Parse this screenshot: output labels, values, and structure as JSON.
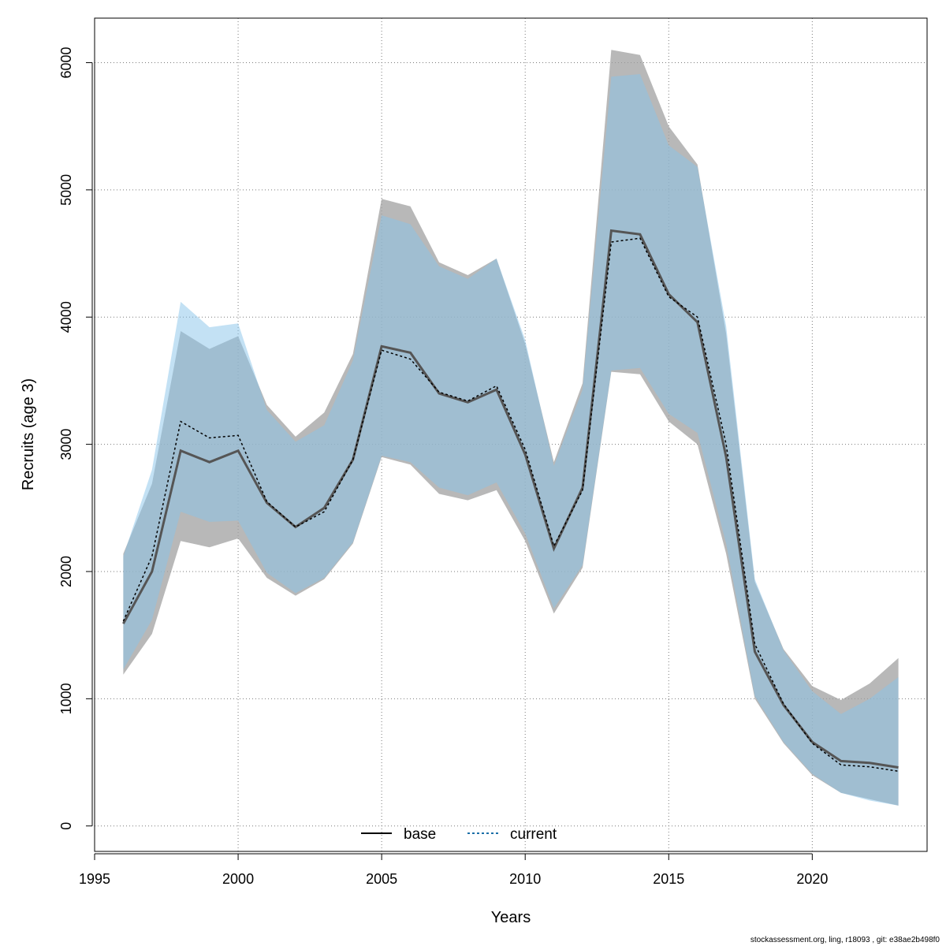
{
  "chart_data": {
    "type": "line",
    "title": "",
    "xlabel": "Years",
    "ylabel": "Recruits (age 3)",
    "xlim": [
      1995,
      2024
    ],
    "ylim": [
      -200,
      6350
    ],
    "x_ticks": [
      1995,
      2000,
      2005,
      2010,
      2015,
      2020
    ],
    "y_ticks": [
      0,
      1000,
      2000,
      3000,
      4000,
      5000,
      6000
    ],
    "grid": true,
    "legend_position": "bottom",
    "x": [
      1996,
      1997,
      1998,
      1999,
      2000,
      2001,
      2002,
      2003,
      2004,
      2005,
      2006,
      2007,
      2008,
      2009,
      2010,
      2011,
      2012,
      2013,
      2014,
      2015,
      2016,
      2017,
      2018,
      2019,
      2020,
      2021,
      2022,
      2023
    ],
    "series": [
      {
        "name": "base",
        "color": "#444444",
        "band_color": "#a0a0a0",
        "line_style": "solid",
        "values": [
          1590,
          2000,
          2950,
          2860,
          2950,
          2540,
          2350,
          2500,
          2880,
          3770,
          3720,
          3400,
          3330,
          3430,
          2920,
          2180,
          2660,
          4680,
          4650,
          4180,
          3960,
          2900,
          1370,
          950,
          660,
          510,
          495,
          460
        ],
        "lower": [
          1190,
          1510,
          2240,
          2190,
          2260,
          1950,
          1810,
          1940,
          2220,
          2900,
          2840,
          2610,
          2560,
          2640,
          2240,
          1670,
          2030,
          3570,
          3550,
          3180,
          3000,
          2140,
          1000,
          650,
          400,
          260,
          210,
          160
        ],
        "upper": [
          2140,
          2690,
          3890,
          3750,
          3850,
          3310,
          3060,
          3250,
          3710,
          4930,
          4870,
          4430,
          4330,
          4460,
          3790,
          2860,
          3480,
          6100,
          6060,
          5500,
          5200,
          3870,
          1920,
          1390,
          1100,
          990,
          1120,
          1320
        ]
      },
      {
        "name": "current",
        "color": "#1a6fa8",
        "band_color": "#87c3ea",
        "line_style": "dashed",
        "values": [
          1610,
          2120,
          3180,
          3050,
          3070,
          2550,
          2350,
          2470,
          2880,
          3740,
          3670,
          3410,
          3340,
          3460,
          2960,
          2200,
          2640,
          4590,
          4620,
          4160,
          4000,
          3000,
          1430,
          960,
          650,
          480,
          465,
          430
        ],
        "lower": [
          1230,
          1620,
          2470,
          2390,
          2400,
          1990,
          1830,
          1950,
          2230,
          2910,
          2860,
          2660,
          2600,
          2700,
          2300,
          1710,
          2050,
          3580,
          3600,
          3240,
          3090,
          2220,
          1020,
          660,
          410,
          260,
          200,
          160
        ],
        "upper": [
          2120,
          2800,
          4120,
          3920,
          3950,
          3270,
          3020,
          3150,
          3660,
          4800,
          4730,
          4400,
          4300,
          4460,
          3820,
          2830,
          3430,
          5890,
          5910,
          5350,
          5180,
          3930,
          1940,
          1380,
          1060,
          880,
          1000,
          1170
        ]
      }
    ]
  },
  "footer_text": "stockassessment.org, ling, r18093 , git: e38ae2b498f0"
}
